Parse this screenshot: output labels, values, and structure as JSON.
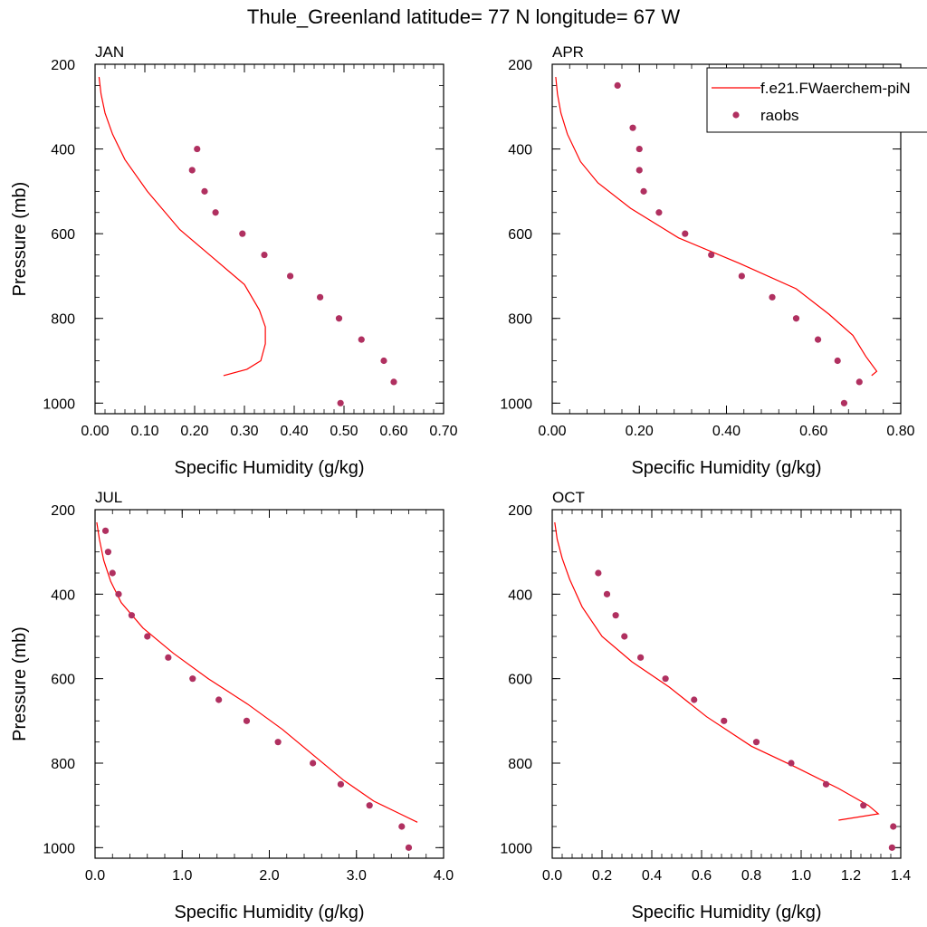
{
  "figure": {
    "title": "Thule_Greenland  latitude= 77 N longitude= 67 W"
  },
  "legend": {
    "model_label": "f.e21.FWaerchem-piN",
    "obs_label": "raobs",
    "model_color": "#ff0000",
    "obs_color": "#b03060"
  },
  "chart_data": [
    {
      "type": "line",
      "panel": "JAN",
      "title": "JAN",
      "xlabel": "Specific Humidity (g/kg)",
      "ylabel": "Pressure (mb)",
      "xlim": [
        0,
        0.7
      ],
      "ylim": [
        1025,
        200
      ],
      "xticks": [
        0,
        0.1,
        0.2,
        0.3,
        0.4,
        0.5,
        0.6,
        0.7
      ],
      "xtick_labels": [
        "0.00",
        "0.10",
        "0.20",
        "0.30",
        "0.40",
        "0.50",
        "0.60",
        "0.70"
      ],
      "yticks": [
        200,
        400,
        600,
        800,
        1000
      ],
      "ytick_labels": [
        "200",
        "400",
        "600",
        "800",
        "1000"
      ],
      "series": [
        {
          "name": "f.e21.FWaerchem-piN",
          "kind": "line",
          "x": [
            0.008,
            0.012,
            0.02,
            0.035,
            0.06,
            0.105,
            0.17,
            0.24,
            0.3,
            0.33,
            0.342,
            0.342,
            0.333,
            0.305,
            0.258
          ],
          "y": [
            230,
            270,
            315,
            365,
            425,
            500,
            590,
            660,
            720,
            780,
            820,
            860,
            900,
            920,
            935
          ]
        },
        {
          "name": "raobs",
          "kind": "scatter",
          "x": [
            0.205,
            0.195,
            0.22,
            0.242,
            0.296,
            0.34,
            0.392,
            0.452,
            0.49,
            0.535,
            0.58,
            0.6,
            0.493
          ],
          "y": [
            400,
            450,
            500,
            550,
            600,
            650,
            700,
            750,
            800,
            850,
            900,
            950,
            1000
          ]
        }
      ]
    },
    {
      "type": "line",
      "panel": "APR",
      "title": "APR",
      "xlabel": "Specific Humidity (g/kg)",
      "ylabel": "",
      "xlim": [
        0,
        0.8
      ],
      "ylim": [
        1025,
        200
      ],
      "xticks": [
        0,
        0.2,
        0.4,
        0.6,
        0.8
      ],
      "xtick_labels": [
        "0.00",
        "0.20",
        "0.40",
        "0.60",
        "0.80"
      ],
      "yticks": [
        200,
        400,
        600,
        800,
        1000
      ],
      "ytick_labels": [
        "200",
        "400",
        "600",
        "800",
        "1000"
      ],
      "series": [
        {
          "name": "f.e21.FWaerchem-piN",
          "kind": "line",
          "x": [
            0.008,
            0.012,
            0.02,
            0.035,
            0.065,
            0.105,
            0.18,
            0.29,
            0.43,
            0.56,
            0.635,
            0.69,
            0.72,
            0.745,
            0.733
          ],
          "y": [
            230,
            270,
            315,
            365,
            430,
            480,
            540,
            610,
            670,
            730,
            790,
            840,
            890,
            925,
            935
          ]
        },
        {
          "name": "raobs",
          "kind": "scatter",
          "x": [
            0.15,
            0.185,
            0.2,
            0.2,
            0.21,
            0.245,
            0.305,
            0.365,
            0.435,
            0.505,
            0.56,
            0.61,
            0.655,
            0.705,
            0.67
          ],
          "y": [
            250,
            350,
            400,
            450,
            500,
            550,
            600,
            650,
            700,
            750,
            800,
            850,
            900,
            950,
            1000
          ]
        }
      ]
    },
    {
      "type": "line",
      "panel": "JUL",
      "title": "JUL",
      "xlabel": "Specific Humidity (g/kg)",
      "ylabel": "Pressure (mb)",
      "xlim": [
        0,
        4.0
      ],
      "ylim": [
        1025,
        200
      ],
      "xticks": [
        0,
        1,
        2,
        3,
        4
      ],
      "xtick_labels": [
        "0.0",
        "1.0",
        "2.0",
        "3.0",
        "4.0"
      ],
      "yticks": [
        200,
        400,
        600,
        800,
        1000
      ],
      "ytick_labels": [
        "200",
        "400",
        "600",
        "800",
        "1000"
      ],
      "series": [
        {
          "name": "f.e21.FWaerchem-piN",
          "kind": "line",
          "x": [
            0.02,
            0.05,
            0.1,
            0.18,
            0.3,
            0.55,
            0.9,
            1.3,
            1.75,
            2.15,
            2.5,
            2.85,
            3.2,
            3.5,
            3.7
          ],
          "y": [
            230,
            270,
            320,
            370,
            420,
            480,
            540,
            600,
            660,
            720,
            780,
            840,
            890,
            920,
            940
          ]
        },
        {
          "name": "raobs",
          "kind": "scatter",
          "x": [
            0.12,
            0.15,
            0.2,
            0.27,
            0.42,
            0.6,
            0.84,
            1.12,
            1.42,
            1.74,
            2.1,
            2.5,
            2.82,
            3.15,
            3.52,
            3.6
          ],
          "y": [
            250,
            300,
            350,
            400,
            450,
            500,
            550,
            600,
            650,
            700,
            750,
            800,
            850,
            900,
            950,
            1000
          ]
        }
      ]
    },
    {
      "type": "line",
      "panel": "OCT",
      "title": "OCT",
      "xlabel": "Specific Humidity (g/kg)",
      "ylabel": "",
      "xlim": [
        0,
        1.4
      ],
      "ylim": [
        1025,
        200
      ],
      "xticks": [
        0,
        0.2,
        0.4,
        0.6,
        0.8,
        1.0,
        1.2,
        1.4
      ],
      "xtick_labels": [
        "0.0",
        "0.2",
        "0.4",
        "0.6",
        "0.8",
        "1.0",
        "1.2",
        "1.4"
      ],
      "yticks": [
        200,
        400,
        600,
        800,
        1000
      ],
      "ytick_labels": [
        "200",
        "400",
        "600",
        "800",
        "1000"
      ],
      "series": [
        {
          "name": "f.e21.FWaerchem-piN",
          "kind": "line",
          "x": [
            0.01,
            0.02,
            0.04,
            0.07,
            0.12,
            0.2,
            0.32,
            0.47,
            0.62,
            0.8,
            0.98,
            1.15,
            1.27,
            1.31,
            1.15
          ],
          "y": [
            230,
            270,
            315,
            365,
            430,
            500,
            560,
            620,
            690,
            760,
            810,
            860,
            900,
            920,
            935
          ]
        },
        {
          "name": "raobs",
          "kind": "scatter",
          "x": [
            0.185,
            0.22,
            0.255,
            0.29,
            0.355,
            0.455,
            0.57,
            0.69,
            0.82,
            0.96,
            1.1,
            1.25,
            1.37,
            1.365
          ],
          "y": [
            350,
            400,
            450,
            500,
            550,
            600,
            650,
            700,
            750,
            800,
            850,
            900,
            950,
            1000
          ]
        }
      ]
    }
  ]
}
